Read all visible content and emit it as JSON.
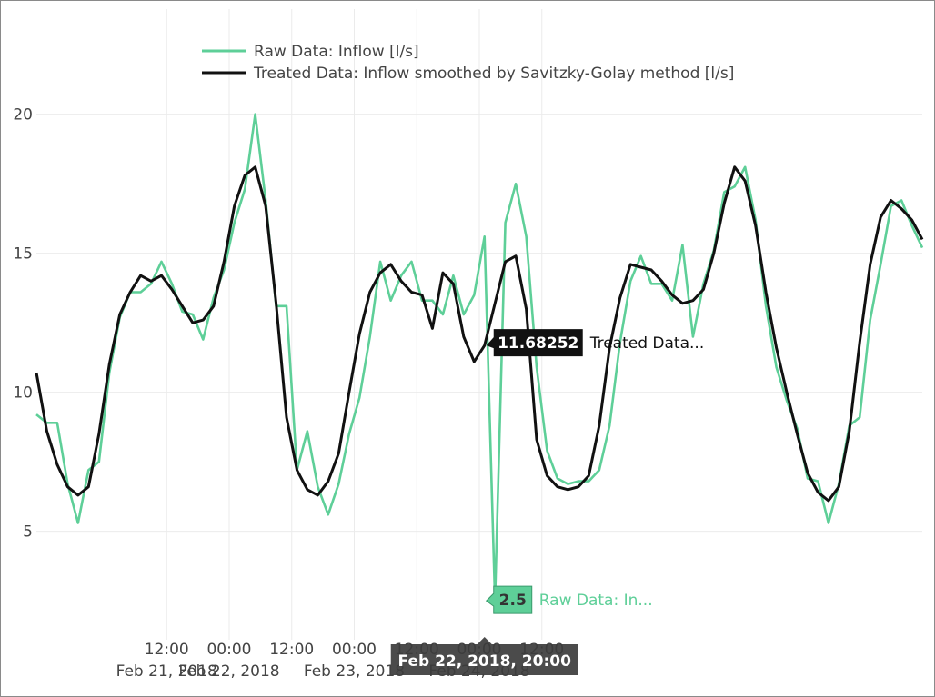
{
  "chart_data": {
    "type": "line",
    "x_start": "2018-02-20T11:00",
    "x_step_hours": 2,
    "x_tick_labels": [
      {
        "time": "2018-02-21T12:00",
        "line1": "12:00",
        "line2": "Feb 21, 2018"
      },
      {
        "time": "2018-02-22T00:00",
        "line1": "00:00",
        "line2": "Feb 22, 2018"
      },
      {
        "time": "2018-02-22T12:00",
        "line1": "12:00",
        "line2": ""
      },
      {
        "time": "2018-02-23T00:00",
        "line1": "00:00",
        "line2": "Feb 23, 2018"
      },
      {
        "time": "2018-02-23T12:00",
        "line1": "12:00",
        "line2": ""
      },
      {
        "time": "2018-02-24T00:00",
        "line1": "00:00",
        "line2": "Feb 24, 2018"
      },
      {
        "time": "2018-02-24T12:00",
        "line1": "12:00",
        "line2": ""
      }
    ],
    "y_ticks": [
      5,
      10,
      15,
      20
    ],
    "ylim": [
      1.1,
      22.8
    ],
    "grid": true,
    "legend_position": "top-left",
    "series": [
      {
        "name": "Raw Data: Inflow [l/s]",
        "color": "#5ecf98",
        "values": [
          9.2,
          8.9,
          8.9,
          6.7,
          5.3,
          7.2,
          7.5,
          10.7,
          12.7,
          13.6,
          13.6,
          13.9,
          14.7,
          13.9,
          12.9,
          12.8,
          11.9,
          13.4,
          14.4,
          16.1,
          17.3,
          20.0,
          16.9,
          13.1,
          13.1,
          7.2,
          8.6,
          6.6,
          5.6,
          6.7,
          8.5,
          9.8,
          12.0,
          14.7,
          13.3,
          14.2,
          14.7,
          13.3,
          13.3,
          12.8,
          14.2,
          12.8,
          13.5,
          15.6,
          2.5,
          16.1,
          17.5,
          15.6,
          10.9,
          7.9,
          6.9,
          6.7,
          6.8,
          6.8,
          7.2,
          8.8,
          11.8,
          14.0,
          14.9,
          13.9,
          13.9,
          13.3,
          15.3,
          12.0,
          13.9,
          15.1,
          17.2,
          17.4,
          18.1,
          16.2,
          13.1,
          10.9,
          9.7,
          8.7,
          6.9,
          6.8,
          5.3,
          6.7,
          8.8,
          9.1,
          12.6,
          14.6,
          16.7,
          16.9,
          16.0,
          15.2
        ]
      },
      {
        "name": "Treated Data: Inflow smoothed by Savitzky-Golay method [l/s]",
        "color": "#111111",
        "values": [
          10.7,
          8.6,
          7.4,
          6.6,
          6.3,
          6.6,
          8.5,
          11.0,
          12.8,
          13.6,
          14.2,
          14.0,
          14.2,
          13.7,
          13.1,
          12.5,
          12.6,
          13.1,
          14.7,
          16.7,
          17.8,
          18.1,
          16.7,
          13.2,
          9.1,
          7.2,
          6.5,
          6.3,
          6.8,
          7.8,
          10.0,
          12.1,
          13.6,
          14.3,
          14.6,
          14.0,
          13.6,
          13.5,
          12.3,
          14.3,
          13.9,
          12.0,
          11.1,
          11.68252,
          13.2,
          14.7,
          14.9,
          13.0,
          8.3,
          7.0,
          6.6,
          6.5,
          6.6,
          7.0,
          8.8,
          11.6,
          13.4,
          14.6,
          14.5,
          14.4,
          14.0,
          13.5,
          13.2,
          13.3,
          13.7,
          15.0,
          16.8,
          18.1,
          17.6,
          16.0,
          13.6,
          11.6,
          10.0,
          8.5,
          7.1,
          6.4,
          6.1,
          6.6,
          8.6,
          11.8,
          14.6,
          16.3,
          16.9,
          16.6,
          16.2,
          15.5
        ]
      }
    ],
    "hover": {
      "x_label": "Feb 22, 2018, 20:00",
      "treated_value": "11.68252",
      "treated_name": "Treated Data...",
      "raw_value": "2.5",
      "raw_name": "Raw Data: In..."
    }
  }
}
